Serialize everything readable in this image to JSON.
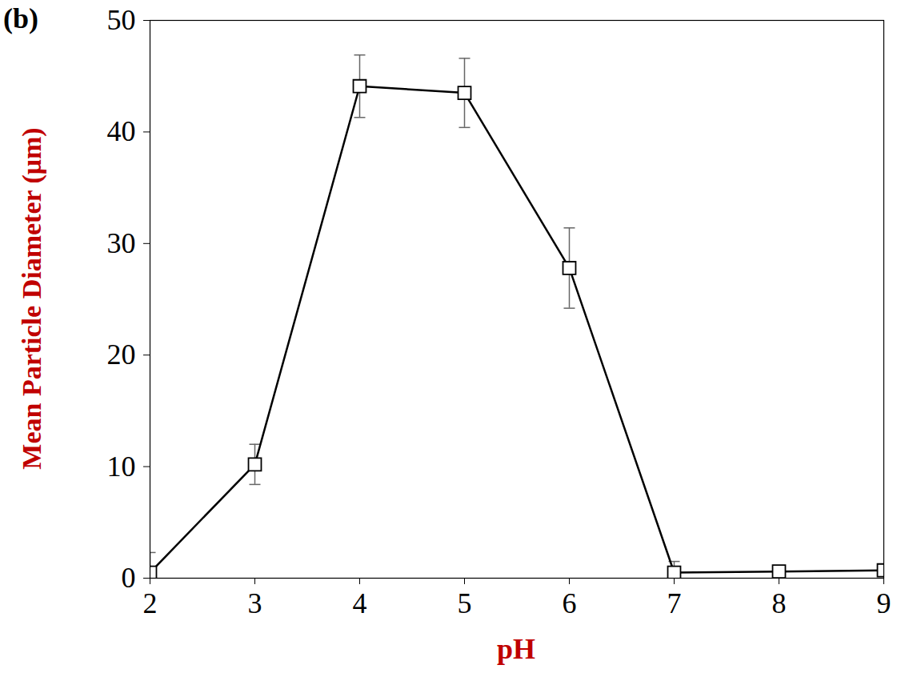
{
  "chart_data": {
    "type": "line",
    "title": "(b)",
    "x_label": "pH",
    "y_label": "Mean Particle Diameter (μm)",
    "x": [
      2,
      3,
      4,
      5,
      6,
      7,
      8,
      9
    ],
    "values": [
      0.5,
      10.2,
      44.1,
      43.5,
      27.8,
      0.5,
      0.6,
      0.7
    ],
    "errors": [
      1.8,
      1.8,
      2.8,
      3.1,
      3.6,
      1.0,
      0.3,
      0.3
    ],
    "color": "#000000",
    "marker": "square",
    "line_style": "solid",
    "xlim": [
      2,
      9
    ],
    "xticks": [
      2,
      3,
      4,
      5,
      6,
      7,
      8,
      9
    ],
    "ylim": [
      0,
      50
    ],
    "yticks": [
      0,
      10,
      20,
      30,
      40,
      50
    ],
    "grid": false
  }
}
